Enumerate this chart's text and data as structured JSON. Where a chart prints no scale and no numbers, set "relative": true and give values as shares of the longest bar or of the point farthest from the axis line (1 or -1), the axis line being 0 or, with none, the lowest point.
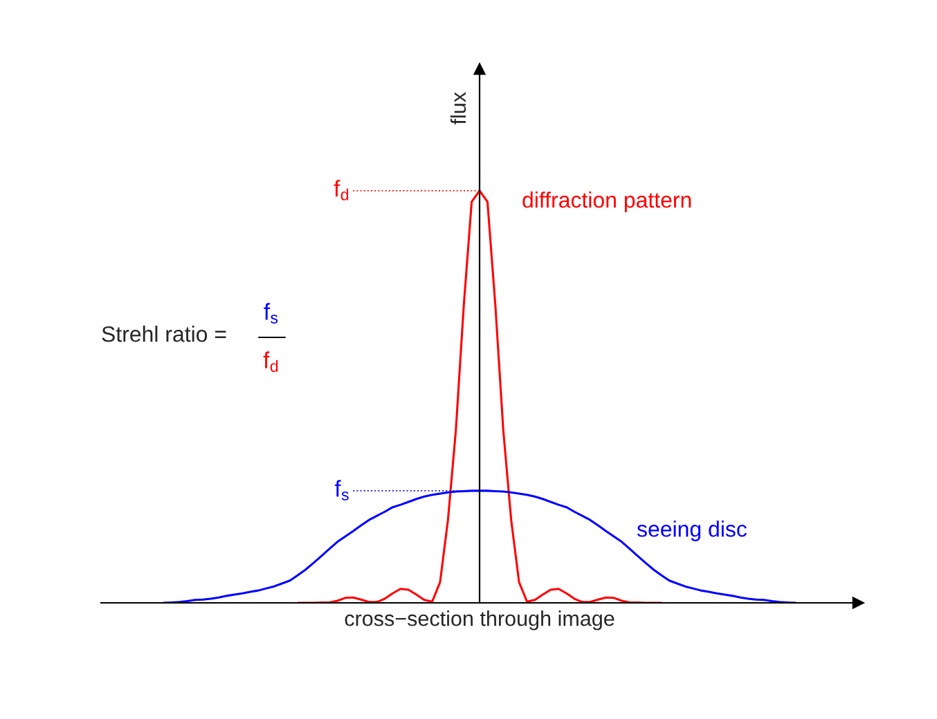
{
  "chart_data": {
    "type": "line",
    "relative": true,
    "xlabel": "cross−section through image",
    "ylabel": "flux",
    "categories": [
      null,
      null,
      null,
      null,
      null,
      null,
      null,
      null,
      null,
      null,
      null,
      null,
      null,
      null,
      null,
      null,
      null,
      null,
      null,
      null,
      null,
      null,
      null,
      null,
      null,
      null,
      null,
      null,
      null,
      null,
      null,
      null,
      null,
      null,
      null,
      null,
      null,
      null,
      null,
      null,
      null,
      null,
      null,
      null,
      null,
      null,
      null,
      null,
      null,
      null,
      null,
      null,
      null,
      null,
      null,
      null,
      null,
      null,
      null,
      null,
      null,
      null,
      null,
      null,
      null,
      null,
      null,
      null,
      null,
      null,
      null,
      null,
      null,
      null,
      null,
      null,
      null,
      null,
      null,
      null,
      null
    ],
    "series": [
      {
        "name": "diffraction pattern",
        "color": "#ff0000",
        "values": [
          null,
          null,
          null,
          null,
          null,
          null,
          null,
          null,
          null,
          null,
          null,
          null,
          null,
          null,
          null,
          null,
          null,
          0,
          0,
          0,
          0.001,
          0.001,
          0.005,
          0.012,
          0.013,
          0.008,
          0.002,
          0.002,
          0.01,
          0.023,
          0.034,
          0.032,
          0.02,
          0.007,
          0.003,
          0.05,
          0.201,
          0.419,
          0.721,
          0.973,
          1,
          0.973,
          0.721,
          0.419,
          0.201,
          0.05,
          0.003,
          0.007,
          0.02,
          0.032,
          0.034,
          0.023,
          0.01,
          0.002,
          0.002,
          0.008,
          0.013,
          0.012,
          0.005,
          0.001,
          0.001,
          0,
          0,
          0,
          null,
          null,
          null,
          null,
          null,
          null,
          null,
          null,
          null,
          null,
          null,
          null,
          null,
          null,
          null,
          null,
          null
        ]
      },
      {
        "name": "seeing disc",
        "color": "#0000ff",
        "values": [
          0,
          0.001,
          0.002,
          0.004,
          0.007,
          0.008,
          0.01,
          0.013,
          0.017,
          0.02,
          0.023,
          0.027,
          0.03,
          0.035,
          0.04,
          0.047,
          0.054,
          0.067,
          0.081,
          0.097,
          0.114,
          0.131,
          0.148,
          0.161,
          0.174,
          0.188,
          0.201,
          0.211,
          0.221,
          0.232,
          0.238,
          0.245,
          0.252,
          0.258,
          0.262,
          0.265,
          0.268,
          0.27,
          0.271,
          0.272,
          0.272,
          0.272,
          0.271,
          0.27,
          0.268,
          0.265,
          0.262,
          0.258,
          0.252,
          0.245,
          0.238,
          0.232,
          0.221,
          0.211,
          0.201,
          0.188,
          0.174,
          0.161,
          0.148,
          0.131,
          0.114,
          0.097,
          0.081,
          0.067,
          0.054,
          0.047,
          0.04,
          0.035,
          0.03,
          0.027,
          0.023,
          0.02,
          0.017,
          0.013,
          0.01,
          0.008,
          0.007,
          0.004,
          0.002,
          0.001,
          0
        ]
      }
    ],
    "ref_lines": [
      {
        "axis": "y",
        "value": 1,
        "label": "f$_{d}$",
        "color": "#ff0000",
        "line_style": "dotted"
      },
      {
        "axis": "y",
        "value": 0.272,
        "label": "f$_{s}$",
        "color": "#0000ff",
        "line_style": "dotted"
      }
    ],
    "annotations": [
      "Strehl ratio =",
      "f$_{s}$",
      "f$_{d}$"
    ],
    "marker": "none",
    "line_style": "solid"
  }
}
